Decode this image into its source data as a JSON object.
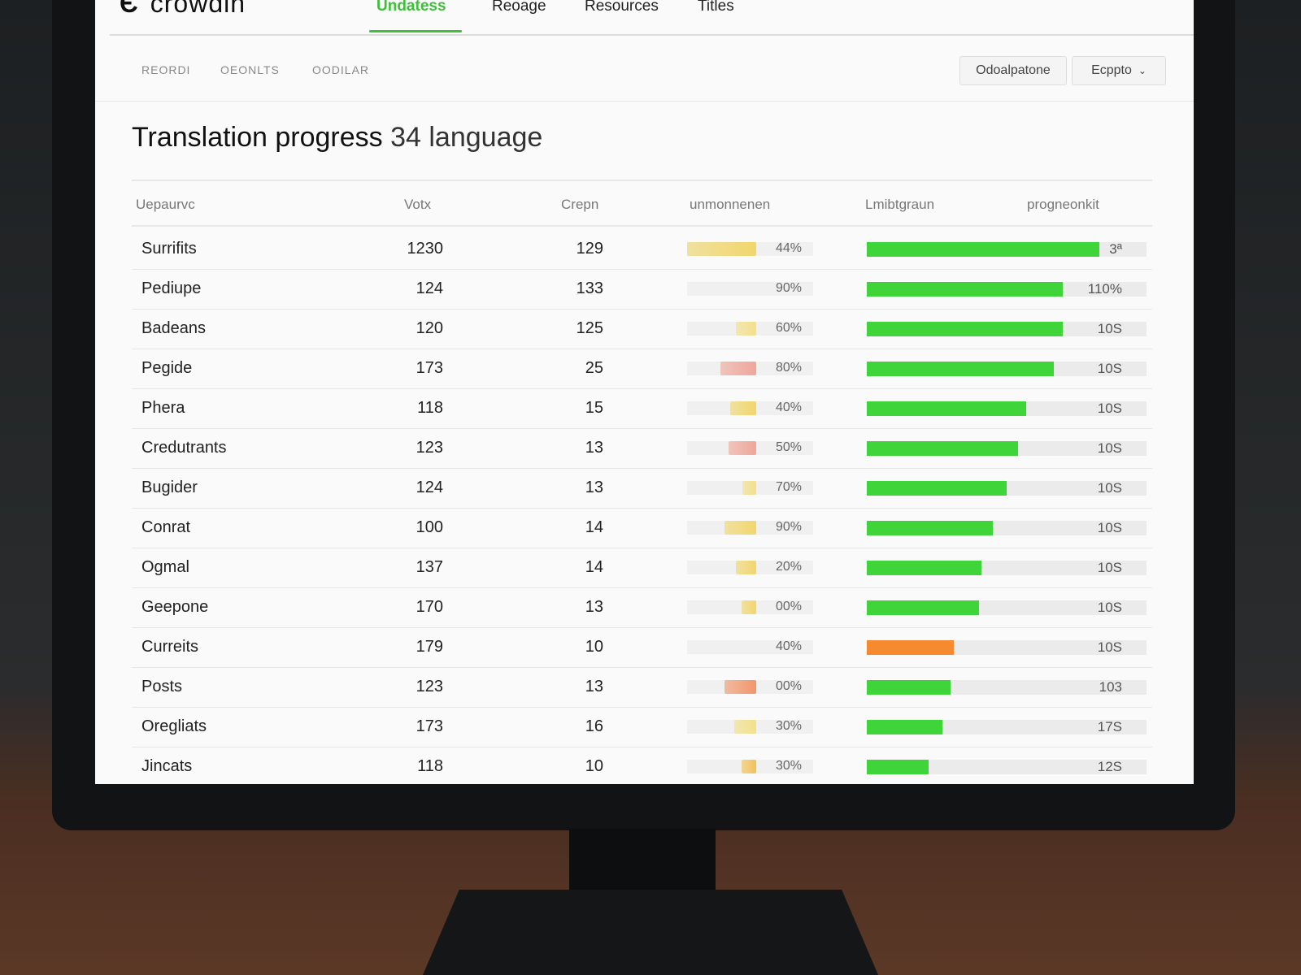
{
  "app": {
    "logo": "crowdin"
  },
  "nav": {
    "items": [
      {
        "label": "Undatess",
        "active": true
      },
      {
        "label": "Reoage"
      },
      {
        "label": "Resources"
      },
      {
        "label": "Titles"
      }
    ]
  },
  "subnav": {
    "items": [
      "REORDI",
      "OEONLTS",
      "OODILAR"
    ]
  },
  "toolbar": {
    "primary_label": "Odoalpatone",
    "dropdown_label": "Ecppto"
  },
  "page": {
    "title": "Translation progress",
    "subtitle": "34 language"
  },
  "table": {
    "headers": [
      "Uepaurvc",
      "Votx",
      "Crepn",
      "unmonnenen",
      "Lmibtgraun",
      "progneonkit"
    ],
    "rows": [
      {
        "name": "Surrifits",
        "votes": "1230",
        "crepn": "129",
        "small_pct": "44%",
        "small_fill": 1.0,
        "small_color": "#f1d66b",
        "progress": 0.83,
        "bar_color": "#3fd43a",
        "bar_label": "3ª"
      },
      {
        "name": "Pediupe",
        "votes": "124",
        "crepn": "133",
        "small_pct": "90%",
        "small_fill": 0,
        "small_color": "#f1d66b",
        "progress": 0.7,
        "bar_color": "#3fd43a",
        "bar_label": "110%"
      },
      {
        "name": "Badeans",
        "votes": "120",
        "crepn": "125",
        "small_pct": "60%",
        "small_fill": 0.29,
        "small_color": "#f3e08a",
        "progress": 0.7,
        "bar_color": "#3fd43a",
        "bar_label": "10S"
      },
      {
        "name": "Pegide",
        "votes": "173",
        "crepn": "25",
        "small_pct": "80%",
        "small_fill": 0.52,
        "small_color": "#eea79a",
        "progress": 0.67,
        "bar_color": "#3fd43a",
        "bar_label": "10S"
      },
      {
        "name": "Phera",
        "votes": "118",
        "crepn": "15",
        "small_pct": "40%",
        "small_fill": 0.38,
        "small_color": "#f1d66b",
        "progress": 0.57,
        "bar_color": "#3fd43a",
        "bar_label": "10S"
      },
      {
        "name": "Credutrants",
        "votes": "123",
        "crepn": "13",
        "small_pct": "50%",
        "small_fill": 0.4,
        "small_color": "#eea79a",
        "progress": 0.54,
        "bar_color": "#3fd43a",
        "bar_label": "10S"
      },
      {
        "name": "Bugider",
        "votes": "124",
        "crepn": "13",
        "small_pct": "70%",
        "small_fill": 0.2,
        "small_color": "#f3e08a",
        "progress": 0.5,
        "bar_color": "#3fd43a",
        "bar_label": "10S"
      },
      {
        "name": "Conrat",
        "votes": "100",
        "crepn": "14",
        "small_pct": "90%",
        "small_fill": 0.46,
        "small_color": "#f1d66b",
        "progress": 0.45,
        "bar_color": "#3fd43a",
        "bar_label": "10S"
      },
      {
        "name": "Ogmal",
        "votes": "137",
        "crepn": "14",
        "small_pct": "20%",
        "small_fill": 0.3,
        "small_color": "#f1d66b",
        "progress": 0.41,
        "bar_color": "#3fd43a",
        "bar_label": "10S"
      },
      {
        "name": "Geepone",
        "votes": "170",
        "crepn": "13",
        "small_pct": "00%",
        "small_fill": 0.21,
        "small_color": "#f1d66b",
        "progress": 0.4,
        "bar_color": "#3fd43a",
        "bar_label": "10S"
      },
      {
        "name": "Curreits",
        "votes": "179",
        "crepn": "10",
        "small_pct": "40%",
        "small_fill": 0,
        "small_color": "#f1d66b",
        "progress": 0.31,
        "bar_color": "#f58a2e",
        "bar_label": "10S"
      },
      {
        "name": "Posts",
        "votes": "123",
        "crepn": "13",
        "small_pct": "00%",
        "small_fill": 0.46,
        "small_color": "#f2956d",
        "progress": 0.3,
        "bar_color": "#3fd43a",
        "bar_label": "103"
      },
      {
        "name": "Oregliats",
        "votes": "173",
        "crepn": "16",
        "small_pct": "30%",
        "small_fill": 0.32,
        "small_color": "#f3e08a",
        "progress": 0.27,
        "bar_color": "#3fd43a",
        "bar_label": "17S"
      },
      {
        "name": "Jincats",
        "votes": "118",
        "crepn": "10",
        "small_pct": "30%",
        "small_fill": 0.21,
        "small_color": "#f1c25a",
        "progress": 0.22,
        "bar_color": "#3fd43a",
        "bar_label": "12S"
      }
    ]
  }
}
